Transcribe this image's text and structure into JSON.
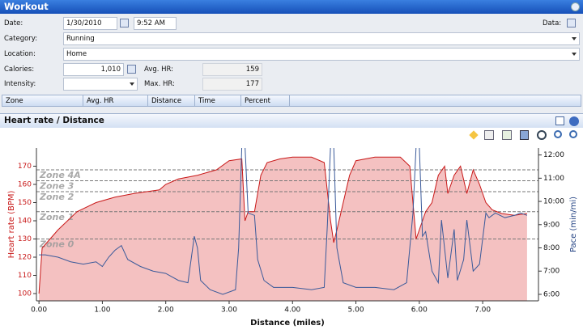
{
  "header": {
    "title": "Workout"
  },
  "form": {
    "date_label": "Date:",
    "date": "1/30/2010",
    "time": "9:52 AM",
    "data_label": "Data:",
    "category_label": "Category:",
    "category": "Running",
    "location_label": "Location:",
    "location": "Home",
    "calories_label": "Calories:",
    "calories": "1,010",
    "avg_hr_label": "Avg. HR:",
    "avg_hr": "159",
    "intensity_label": "Intensity:",
    "max_hr_label": "Max. HR:",
    "max_hr": "177"
  },
  "table": {
    "columns": [
      "Zone",
      "Avg. HR",
      "Distance",
      "Time",
      "Percent"
    ]
  },
  "panel": {
    "title": "Heart rate / Distance"
  },
  "chart_data": {
    "type": "line",
    "x_label": "Distance (miles)",
    "y_label": "Heart rate (BPM)",
    "y2_label": "Pace (min/mi)",
    "xlim": [
      -0.04,
      7.88
    ],
    "xticks": [
      {
        "value": 0,
        "label": "0.00"
      },
      {
        "value": 1,
        "label": "1.00"
      },
      {
        "value": 2,
        "label": "2.00"
      },
      {
        "value": 3,
        "label": "3.00"
      },
      {
        "value": 4,
        "label": "4.00"
      },
      {
        "value": 5,
        "label": "5.00"
      },
      {
        "value": 6,
        "label": "6.00"
      },
      {
        "value": 7,
        "label": "7.00"
      }
    ],
    "ylim": [
      96,
      180
    ],
    "yticks": [
      100,
      110,
      120,
      130,
      140,
      150,
      160,
      170
    ],
    "y2lim": [
      5.72,
      12.3
    ],
    "y2ticks": [
      {
        "value": 6,
        "label": "6:00"
      },
      {
        "value": 7,
        "label": "7:00"
      },
      {
        "value": 8,
        "label": "8:00"
      },
      {
        "value": 9,
        "label": "9:00"
      },
      {
        "value": 10,
        "label": "10:00"
      },
      {
        "value": 11,
        "label": "11:00"
      },
      {
        "value": 12,
        "label": "12:00"
      }
    ],
    "zones": [
      {
        "name": "Zone 0",
        "value": 130
      },
      {
        "name": "Zone 1",
        "value": 145
      },
      {
        "name": "Zone 2",
        "value": 156
      },
      {
        "name": "Zone 3",
        "value": 162
      },
      {
        "name": "Zone 4A",
        "value": 168
      }
    ],
    "series": [
      {
        "color": "#c81818",
        "fill": "#f2b6b6",
        "x": [
          0,
          0.05,
          0.3,
          0.6,
          0.9,
          1.2,
          1.5,
          1.9,
          2.0,
          2.2,
          2.5,
          2.8,
          3.0,
          3.2,
          3.25,
          3.3,
          3.4,
          3.5,
          3.6,
          3.8,
          4.0,
          4.3,
          4.5,
          4.6,
          4.65,
          4.7,
          4.8,
          4.9,
          5.0,
          5.3,
          5.7,
          5.85,
          5.95,
          6.0,
          6.1,
          6.2,
          6.3,
          6.4,
          6.45,
          6.55,
          6.65,
          6.75,
          6.85,
          6.95,
          7.05,
          7.15,
          7.3,
          7.5,
          7.7
        ],
        "values": [
          100,
          125,
          135,
          145,
          150,
          153,
          155,
          157,
          160,
          163,
          165,
          168,
          173,
          174,
          140,
          145,
          145,
          165,
          172,
          174,
          175,
          175,
          172,
          140,
          128,
          135,
          150,
          165,
          173,
          175,
          175,
          170,
          130,
          135,
          145,
          150,
          165,
          170,
          155,
          165,
          170,
          155,
          168,
          160,
          150,
          146,
          144,
          143,
          144
        ]
      },
      {
        "color": "#3a5a9a",
        "axis": "y2",
        "x": [
          0,
          0.1,
          0.3,
          0.5,
          0.7,
          0.9,
          1.0,
          1.1,
          1.2,
          1.3,
          1.4,
          1.6,
          1.8,
          2.0,
          2.2,
          2.35,
          2.45,
          2.5,
          2.55,
          2.7,
          2.9,
          3.1,
          3.15,
          3.2,
          3.25,
          3.3,
          3.4,
          3.45,
          3.55,
          3.7,
          4.0,
          4.3,
          4.5,
          4.55,
          4.6,
          4.65,
          4.7,
          4.8,
          5.0,
          5.3,
          5.6,
          5.8,
          5.9,
          5.95,
          6.0,
          6.05,
          6.1,
          6.2,
          6.3,
          6.35,
          6.45,
          6.55,
          6.6,
          6.7,
          6.75,
          6.85,
          6.95,
          7.05,
          7.1,
          7.2,
          7.35,
          7.5,
          7.6,
          7.7
        ],
        "values": [
          7.7,
          7.7,
          7.6,
          7.4,
          7.3,
          7.4,
          7.2,
          7.6,
          7.9,
          8.1,
          7.5,
          7.2,
          7.0,
          6.9,
          6.6,
          6.5,
          8.5,
          8.0,
          6.6,
          6.2,
          6.0,
          6.2,
          8,
          12.4,
          12.4,
          9.5,
          9.4,
          7.5,
          6.6,
          6.3,
          6.3,
          6.2,
          6.3,
          9,
          12.4,
          12.4,
          8.0,
          6.5,
          6.3,
          6.3,
          6.2,
          6.5,
          9.5,
          12.4,
          12.4,
          8.5,
          8.7,
          7.0,
          6.5,
          9.2,
          6.7,
          8.8,
          6.6,
          7.5,
          9.2,
          7.0,
          7.3,
          9.5,
          9.3,
          9.5,
          9.3,
          9.4,
          9.5,
          9.4
        ]
      }
    ]
  }
}
